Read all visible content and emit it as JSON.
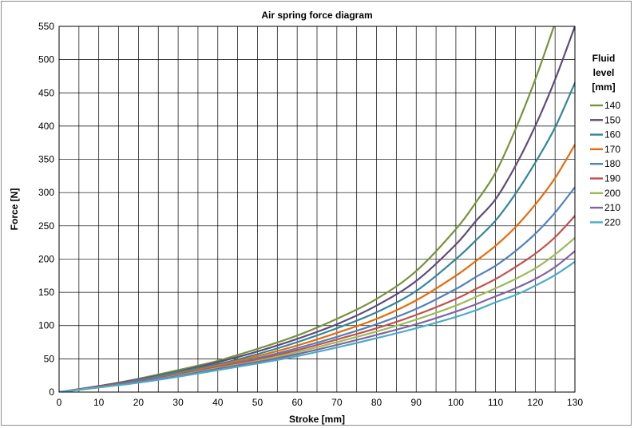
{
  "chart_data": {
    "type": "line",
    "title": "Air spring force diagram",
    "xlabel": "Stroke [mm]",
    "ylabel": "Force [N]",
    "xlim": [
      0,
      130
    ],
    "ylim": [
      0,
      550
    ],
    "xticks": [
      0,
      10,
      20,
      30,
      40,
      50,
      60,
      70,
      80,
      90,
      100,
      110,
      120,
      130
    ],
    "yticks": [
      0,
      50,
      100,
      150,
      200,
      250,
      300,
      350,
      400,
      450,
      500,
      550
    ],
    "grid": true,
    "legend_position": "right",
    "legend_title": [
      "Fluid",
      "level",
      "[mm]"
    ],
    "x": [
      0,
      10,
      20,
      30,
      40,
      50,
      60,
      70,
      80,
      90,
      100,
      105,
      110,
      115,
      120,
      125,
      130
    ],
    "series": [
      {
        "name": "140",
        "color": "#77933C",
        "values": [
          0,
          9,
          20,
          33,
          47,
          65,
          85,
          110,
          140,
          182,
          245,
          285,
          330,
          395,
          470,
          555,
          null
        ]
      },
      {
        "name": "150",
        "color": "#604A7B",
        "values": [
          0,
          9,
          19,
          31,
          45,
          61,
          80,
          102,
          130,
          167,
          222,
          257,
          290,
          340,
          400,
          470,
          550
        ]
      },
      {
        "name": "160",
        "color": "#31859C",
        "values": [
          0,
          8,
          18,
          30,
          42,
          57,
          75,
          96,
          120,
          152,
          200,
          228,
          258,
          298,
          345,
          398,
          465
        ]
      },
      {
        "name": "170",
        "color": "#E46C0A",
        "values": [
          0,
          8,
          17,
          28,
          40,
          54,
          70,
          89,
          110,
          138,
          175,
          197,
          220,
          248,
          282,
          322,
          372
        ]
      },
      {
        "name": "180",
        "color": "#4F81BD",
        "values": [
          0,
          8,
          17,
          27,
          38,
          51,
          66,
          83,
          102,
          125,
          155,
          173,
          190,
          212,
          238,
          270,
          308
        ]
      },
      {
        "name": "190",
        "color": "#C0504D",
        "values": [
          0,
          8,
          16,
          26,
          37,
          49,
          63,
          79,
          96,
          116,
          140,
          155,
          170,
          188,
          208,
          233,
          265
        ]
      },
      {
        "name": "200",
        "color": "#9BBB59",
        "values": [
          0,
          7,
          15,
          25,
          36,
          47,
          60,
          75,
          91,
          109,
          130,
          143,
          156,
          170,
          186,
          207,
          232
        ]
      },
      {
        "name": "210",
        "color": "#8064A2",
        "values": [
          0,
          7,
          15,
          24,
          35,
          45,
          57,
          71,
          86,
          102,
          121,
          132,
          144,
          156,
          170,
          188,
          212
        ]
      },
      {
        "name": "220",
        "color": "#4BACC6",
        "values": [
          0,
          7,
          14,
          23,
          33,
          43,
          54,
          67,
          81,
          96,
          113,
          123,
          135,
          146,
          160,
          176,
          196
        ]
      }
    ]
  }
}
